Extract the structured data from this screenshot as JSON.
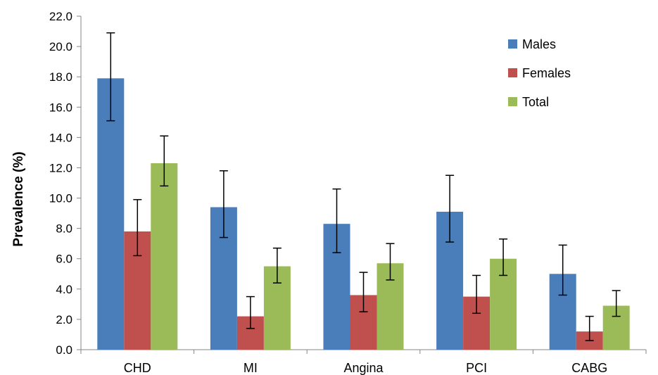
{
  "chart_data": {
    "type": "bar",
    "title": "",
    "xlabel": "",
    "ylabel": "Prevalence (%)",
    "ylim": [
      0,
      22
    ],
    "yticks": [
      "0.0",
      "2.0",
      "4.0",
      "6.0",
      "8.0",
      "10.0",
      "12.0",
      "14.0",
      "16.0",
      "18.0",
      "20.0",
      "22.0"
    ],
    "categories": [
      "CHD",
      "MI",
      "Angina",
      "PCI",
      "CABG"
    ],
    "error_bars": true,
    "legend_position": "top-right",
    "grid": false,
    "series": [
      {
        "name": "Males",
        "color": "#4a7ebb",
        "values": [
          17.9,
          9.4,
          8.3,
          9.1,
          5.0
        ],
        "err_low": [
          15.1,
          7.4,
          6.4,
          7.1,
          3.6
        ],
        "err_high": [
          20.9,
          11.8,
          10.6,
          11.5,
          6.9
        ]
      },
      {
        "name": "Females",
        "color": "#c0504d",
        "values": [
          7.8,
          2.2,
          3.6,
          3.5,
          1.2
        ],
        "err_low": [
          6.2,
          1.4,
          2.5,
          2.4,
          0.6
        ],
        "err_high": [
          9.9,
          3.5,
          5.1,
          4.9,
          2.2
        ]
      },
      {
        "name": "Total",
        "color": "#9bbb59",
        "values": [
          12.3,
          5.5,
          5.7,
          6.0,
          2.9
        ],
        "err_low": [
          10.8,
          4.4,
          4.6,
          4.9,
          2.2
        ],
        "err_high": [
          14.1,
          6.7,
          7.0,
          7.3,
          3.9
        ]
      }
    ]
  }
}
